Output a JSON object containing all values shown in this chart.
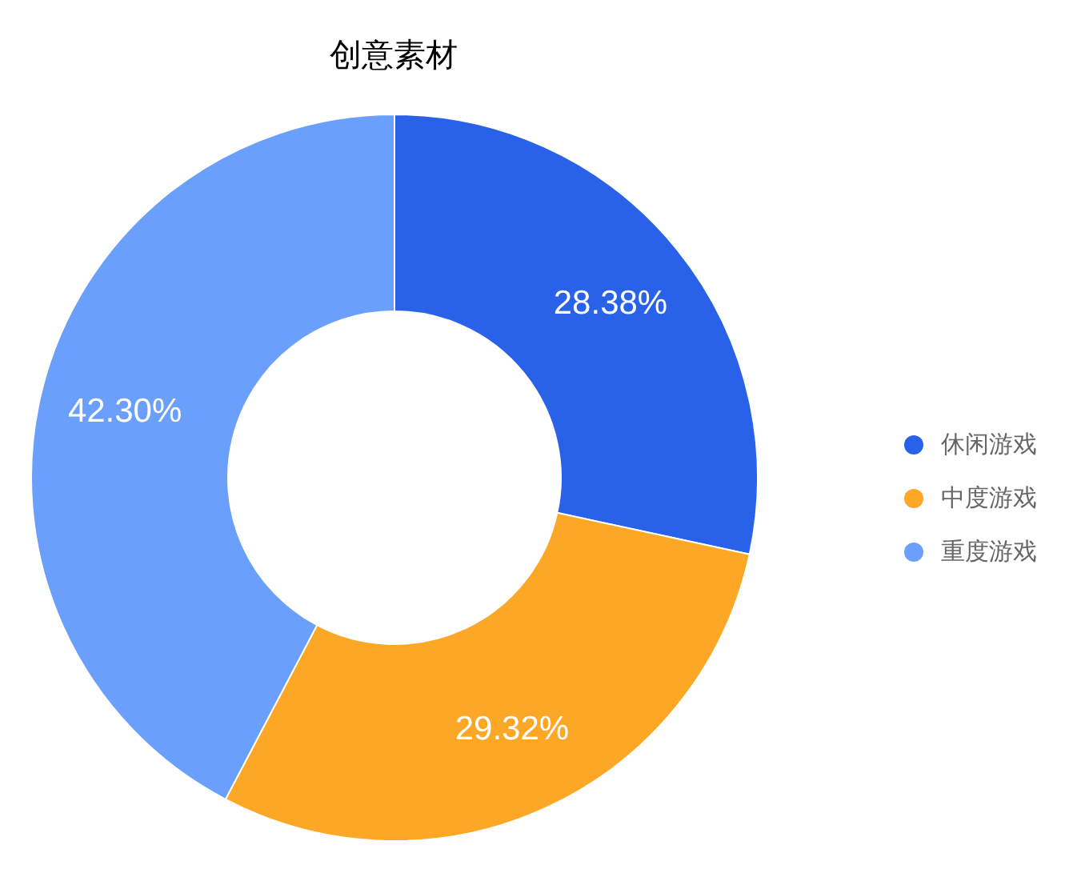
{
  "chart_data": {
    "type": "donut",
    "title": "创意素材",
    "categories": [
      "休闲游戏",
      "中度游戏",
      "重度游戏"
    ],
    "values": [
      28.38,
      29.32,
      42.3
    ],
    "colors": [
      "#2962e8",
      "#fda726",
      "#6aa0fb"
    ],
    "value_labels": [
      "28.38%",
      "29.32%",
      "42.30%"
    ],
    "legend": "right"
  }
}
